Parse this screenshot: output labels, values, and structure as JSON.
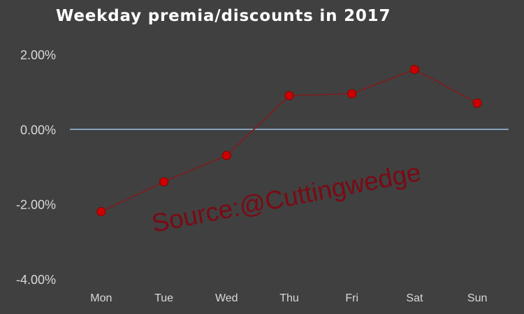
{
  "chart_data": {
    "type": "line",
    "title": "Weekday premia/discounts in 2017",
    "xlabel": "",
    "ylabel": "",
    "categories": [
      "Mon",
      "Tue",
      "Wed",
      "Thu",
      "Fri",
      "Sat",
      "Sun"
    ],
    "series": [
      {
        "values": [
          -0.022,
          -0.014,
          -0.007,
          0.009,
          0.0095,
          0.016,
          0.007
        ]
      }
    ],
    "ylim": [
      -0.04,
      0.02
    ],
    "yticks": [
      0.02,
      0.0,
      -0.02,
      -0.04
    ],
    "ytick_labels": [
      "2.00%",
      "0.00%",
      "-2.00%",
      "-4.00%"
    ],
    "grid": false,
    "legend": "none",
    "colors": {
      "background": "#404040",
      "line": "#7a1f1f",
      "marker": "#cc0000",
      "zero_line": "#9dc3e6",
      "text": "#ffffff",
      "tick_text": "#d9d9d9",
      "watermark": "#7a0a14"
    }
  },
  "watermark": "Source:@Cuttingwedge"
}
